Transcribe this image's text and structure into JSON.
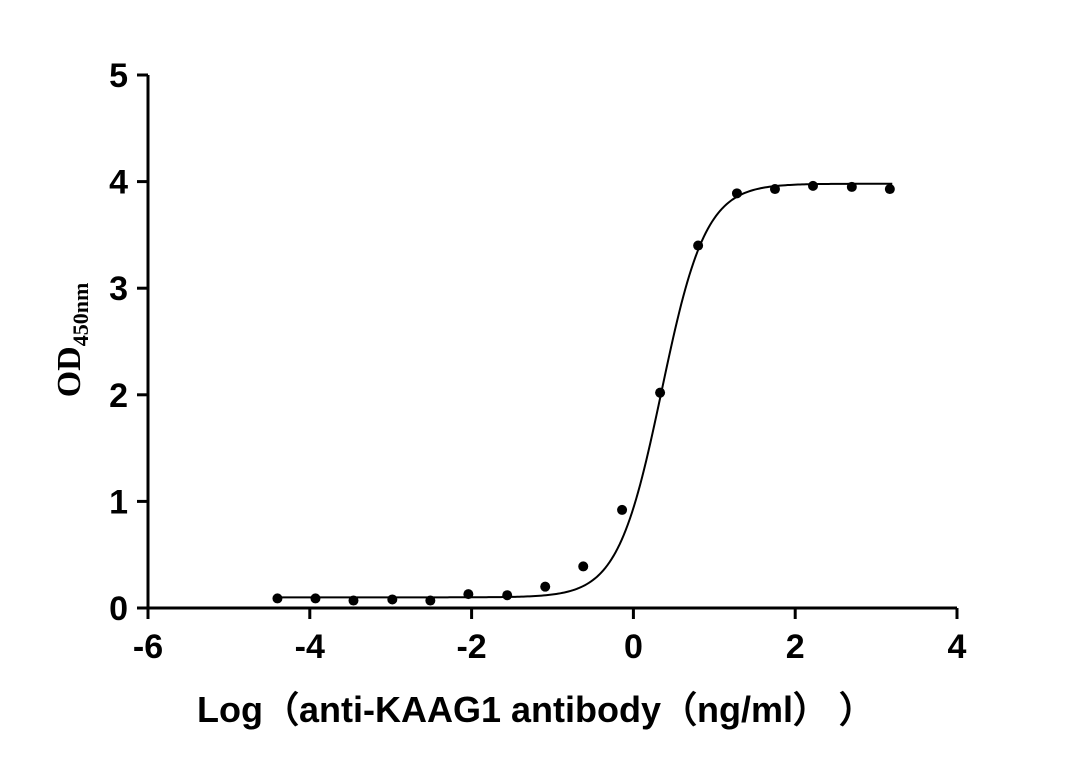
{
  "chart_data": {
    "type": "scatter",
    "title": "",
    "xlabel": "Log（anti-KAAG1 antibody（ng/ml）  ）",
    "ylabel": "OD",
    "ylabel_subscript": "450nm",
    "xlim": [
      -6,
      4
    ],
    "ylim": [
      0,
      5
    ],
    "xticks": [
      "-6",
      "-4",
      "-2",
      "0",
      "2",
      "4"
    ],
    "yticks": [
      "0",
      "1",
      "2",
      "3",
      "4",
      "5"
    ],
    "grid": false,
    "legend": "none",
    "series": [
      {
        "points": [
          {
            "x": -4.4,
            "y": 0.09
          },
          {
            "x": -3.93,
            "y": 0.09
          },
          {
            "x": -3.46,
            "y": 0.07
          },
          {
            "x": -2.98,
            "y": 0.08
          },
          {
            "x": -2.51,
            "y": 0.07
          },
          {
            "x": -2.04,
            "y": 0.13
          },
          {
            "x": -1.56,
            "y": 0.12
          },
          {
            "x": -1.09,
            "y": 0.2
          },
          {
            "x": -0.62,
            "y": 0.39
          },
          {
            "x": -0.14,
            "y": 0.92
          },
          {
            "x": 0.33,
            "y": 2.02
          },
          {
            "x": 0.8,
            "y": 3.4
          },
          {
            "x": 1.28,
            "y": 3.89
          },
          {
            "x": 1.75,
            "y": 3.93
          },
          {
            "x": 2.22,
            "y": 3.96
          },
          {
            "x": 2.7,
            "y": 3.95
          },
          {
            "x": 3.17,
            "y": 3.93
          }
        ],
        "fit": {
          "model": "4PL",
          "bottom": 0.1,
          "top": 3.98,
          "log_ec50": 0.35,
          "hill_slope": 1.6,
          "x_range": [
            -4.4,
            3.2
          ]
        }
      }
    ],
    "colors": {
      "marks": "#000000",
      "background": "#ffffff"
    }
  }
}
